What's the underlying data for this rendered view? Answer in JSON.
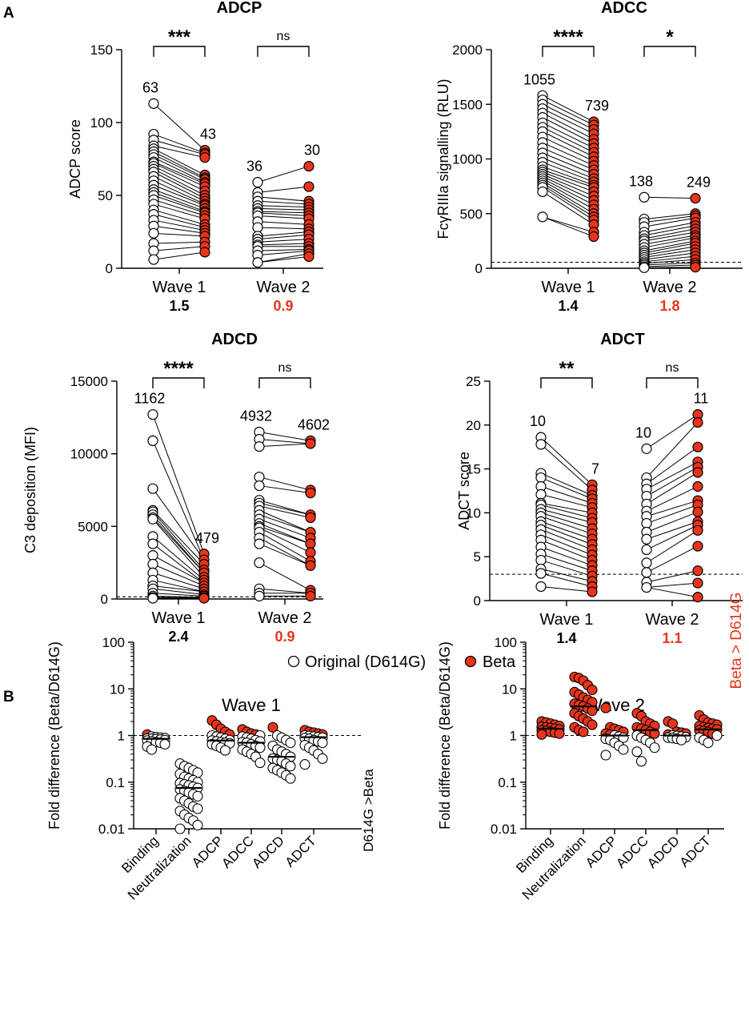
{
  "figure": {
    "panel_labels": [
      "A",
      "B"
    ],
    "legend": {
      "original": {
        "label": "Original (D614G)",
        "fill": "#ffffff"
      },
      "beta": {
        "label": "Beta",
        "fill": "#e8341c"
      }
    },
    "colors": {
      "beta": "#e8341c",
      "original": "#ffffff",
      "stroke": "#000000",
      "highlight_text": "#e8341c"
    }
  },
  "chart_data": [
    {
      "type": "scatter",
      "panel": "A",
      "title": "ADCP",
      "ylabel": "ADCP score",
      "ylim": [
        0,
        150
      ],
      "yticks": [
        0,
        50,
        100,
        150
      ],
      "categories": [
        "Wave 1",
        "Wave 2"
      ],
      "fold_labels": [
        "1.5",
        "0.9"
      ],
      "fold_colors": [
        "#000000",
        "#e8341c"
      ],
      "significance": [
        "***",
        "ns"
      ],
      "median_labels": [
        [
          "63",
          "43"
        ],
        [
          "36",
          "30"
        ]
      ],
      "cutoff": null,
      "series": [
        {
          "name": "Original (D614G)",
          "values": [
            [
              113,
              92,
              88,
              84,
              82,
              80,
              78,
              76,
              73,
              72,
              70,
              68,
              66,
              63,
              60,
              57,
              54,
              52,
              50,
              47,
              44,
              40,
              37,
              33,
              29,
              24,
              17,
              12,
              6
            ],
            [
              59,
              52,
              49,
              46,
              43,
              41,
              39,
              38,
              36,
              32,
              28,
              22,
              20,
              18,
              16,
              15,
              12,
              9,
              4
            ]
          ]
        },
        {
          "name": "Beta",
          "values": [
            [
              81,
              79,
              78,
              76,
              64,
              62,
              61,
              59,
              58,
              56,
              53,
              50,
              48,
              46,
              44,
              43,
              41,
              39,
              38,
              36,
              34,
              30,
              28,
              26,
              24,
              22,
              18,
              15,
              11
            ],
            [
              70,
              56,
              46,
              44,
              42,
              40,
              38,
              36,
              34,
              30,
              27,
              25,
              23,
              20,
              17,
              15,
              13,
              12,
              10,
              8
            ]
          ]
        }
      ]
    },
    {
      "type": "scatter",
      "panel": "A",
      "title": "ADCC",
      "ylabel": "FcγRIIIa signalling (RLU)",
      "ylim": [
        0,
        2000
      ],
      "yticks": [
        0,
        500,
        1000,
        1500,
        2000
      ],
      "categories": [
        "Wave 1",
        "Wave 2"
      ],
      "fold_labels": [
        "1.4",
        "1.8"
      ],
      "fold_colors": [
        "#000000",
        "#e8341c"
      ],
      "significance": [
        "****",
        "*"
      ],
      "median_labels": [
        [
          "1055",
          "739"
        ],
        [
          "138",
          "249"
        ]
      ],
      "cutoff": 55,
      "series": [
        {
          "name": "Original (D614G)",
          "values": [
            [
              1580,
              1540,
              1500,
              1460,
              1420,
              1380,
              1330,
              1290,
              1250,
              1200,
              1150,
              1100,
              1055,
              1010,
              970,
              930,
              900,
              880,
              860,
              840,
              820,
              800,
              780,
              760,
              740,
              700,
              470
            ],
            [
              650,
              450,
              420,
              380,
              330,
              300,
              270,
              250,
              220,
              190,
              160,
              140,
              120,
              100,
              80,
              60,
              45,
              30,
              15,
              5
            ]
          ]
        },
        {
          "name": "Beta",
          "values": [
            [
              1340,
              1310,
              1270,
              1230,
              1180,
              1140,
              1100,
              1060,
              1020,
              980,
              940,
              900,
              860,
              820,
              790,
              760,
              739,
              700,
              660,
              620,
              580,
              540,
              500,
              470,
              440,
              400,
              330,
              290
            ],
            [
              640,
              500,
              480,
              460,
              420,
              390,
              360,
              330,
              300,
              280,
              250,
              230,
              200,
              170,
              140,
              110,
              80,
              50,
              30,
              10
            ]
          ]
        }
      ]
    },
    {
      "type": "scatter",
      "panel": "A",
      "title": "ADCD",
      "ylabel": "C3 deposition (MFI)",
      "ylim": [
        0,
        15000
      ],
      "yticks": [
        0,
        5000,
        10000,
        15000
      ],
      "categories": [
        "Wave 1",
        "Wave 2"
      ],
      "fold_labels": [
        "2.4",
        "0.9"
      ],
      "fold_colors": [
        "#000000",
        "#e8341c"
      ],
      "significance": [
        "****",
        "ns"
      ],
      "median_labels": [
        [
          "1162",
          "479"
        ],
        [
          "4932",
          "4602"
        ]
      ],
      "cutoff": 150,
      "series": [
        {
          "name": "Original (D614G)",
          "values": [
            [
              12700,
              10900,
              7600,
              6100,
              6000,
              5800,
              5600,
              5500,
              4300,
              3800,
              3000,
              2400,
              1800,
              1300,
              900,
              700,
              400,
              200,
              100,
              50
            ],
            [
              11500,
              11000,
              10500,
              8400,
              7800,
              6800,
              6600,
              6400,
              6100,
              5800,
              5500,
              5200,
              5000,
              4900,
              4600,
              4200,
              3800,
              2500,
              700,
              400,
              200
            ]
          ]
        },
        {
          "name": "Beta",
          "values": [
            [
              3100,
              2700,
              2400,
              2000,
              1800,
              1500,
              1300,
              1100,
              900,
              700,
              500,
              300,
              200,
              100,
              50
            ],
            [
              10900,
              10700,
              7500,
              7300,
              5800,
              5600,
              4600,
              4200,
              3800,
              3200,
              2600,
              2300,
              600,
              400,
              200
            ]
          ]
        }
      ]
    },
    {
      "type": "scatter",
      "panel": "A",
      "title": "ADCT",
      "ylabel": "ADCT score",
      "ylim": [
        0,
        25
      ],
      "yticks": [
        0,
        5,
        10,
        15,
        20,
        25
      ],
      "categories": [
        "Wave 1",
        "Wave 2"
      ],
      "fold_labels": [
        "1.4",
        "1.1"
      ],
      "fold_colors": [
        "#000000",
        "#e8341c"
      ],
      "significance": [
        "**",
        "ns"
      ],
      "median_labels": [
        [
          "10",
          "7"
        ],
        [
          "10",
          "11"
        ]
      ],
      "cutoff": 3,
      "series": [
        {
          "name": "Original (D614G)",
          "values": [
            [
              18.6,
              17.8,
              14.5,
              14.0,
              13.0,
              12.1,
              11.1,
              10.9,
              10.4,
              10.0,
              9.6,
              9.0,
              8.6,
              8.1,
              7.5,
              6.9,
              6.1,
              5.3,
              4.6,
              3.6,
              3.1,
              1.6
            ],
            [
              17.3,
              14.0,
              13.3,
              12.7,
              11.9,
              11.0,
              10.2,
              9.6,
              8.8,
              7.8,
              7.0,
              5.8,
              4.3,
              3.2,
              2.1,
              1.5
            ]
          ]
        },
        {
          "name": "Beta",
          "values": [
            [
              13.2,
              12.6,
              12.0,
              11.6,
              11.1,
              10.6,
              10.0,
              9.4,
              8.9,
              8.2,
              7.6,
              7.0,
              6.4,
              5.8,
              5.2,
              4.6,
              4.0,
              3.4,
              2.8,
              2.2,
              1.6,
              1.0
            ],
            [
              21.2,
              20.3,
              17.5,
              15.8,
              15.2,
              14.6,
              13.0,
              11.4,
              10.9,
              10.1,
              9.0,
              8.6,
              8.0,
              6.2,
              3.4,
              2.0,
              0.4
            ]
          ]
        }
      ]
    },
    {
      "type": "scatter",
      "panel": "B",
      "title": "Wave 1",
      "ylabel": "Fold difference (Beta/D614G)",
      "yscale": "log",
      "ylim": [
        0.01,
        100
      ],
      "yticks": [
        0.01,
        0.1,
        1,
        10,
        100
      ],
      "ytick_labels": [
        "0.01",
        "0.1",
        "1",
        "10",
        "100"
      ],
      "categories": [
        "Binding",
        "Neutralization",
        "ADCP",
        "ADCC",
        "ADCD",
        "ADCT"
      ],
      "reference_line": 1,
      "side_annotation": "D614G >Beta",
      "medians": [
        0.85,
        0.075,
        0.78,
        0.7,
        0.35,
        0.92
      ],
      "values": [
        [
          1.05,
          0.95,
          0.92,
          0.9,
          0.88,
          0.86,
          0.85,
          0.84,
          0.82,
          0.8,
          0.78,
          0.75,
          0.72,
          0.7,
          0.65,
          0.58,
          0.5
        ],
        [
          0.25,
          0.22,
          0.2,
          0.18,
          0.16,
          0.15,
          0.13,
          0.12,
          0.11,
          0.1,
          0.095,
          0.09,
          0.085,
          0.08,
          0.075,
          0.07,
          0.065,
          0.06,
          0.055,
          0.05,
          0.045,
          0.04,
          0.035,
          0.03,
          0.027,
          0.024,
          0.02,
          0.017,
          0.015,
          0.012,
          0.01
        ],
        [
          2.1,
          1.7,
          1.4,
          1.2,
          1.05,
          1.0,
          0.95,
          0.9,
          0.85,
          0.8,
          0.78,
          0.75,
          0.72,
          0.7,
          0.68,
          0.65,
          0.6,
          0.55,
          0.48
        ],
        [
          1.35,
          1.2,
          1.1,
          1.05,
          1.0,
          0.95,
          0.9,
          0.85,
          0.8,
          0.75,
          0.72,
          0.7,
          0.65,
          0.6,
          0.55,
          0.5,
          0.45,
          0.4,
          0.35,
          0.26
        ],
        [
          1.5,
          1.0,
          0.9,
          0.8,
          0.7,
          0.6,
          0.5,
          0.45,
          0.4,
          0.35,
          0.32,
          0.3,
          0.28,
          0.25,
          0.22,
          0.2,
          0.18,
          0.16,
          0.14,
          0.12
        ],
        [
          1.3,
          1.2,
          1.15,
          1.1,
          1.05,
          1.0,
          0.98,
          0.95,
          0.92,
          0.9,
          0.88,
          0.85,
          0.8,
          0.75,
          0.7,
          0.62,
          0.55,
          0.48,
          0.4,
          0.32,
          0.24
        ]
      ]
    },
    {
      "type": "scatter",
      "panel": "B",
      "title": "Wave 2",
      "ylabel": "Fold difference (Beta/D614G)",
      "yscale": "log",
      "ylim": [
        0.01,
        100
      ],
      "yticks": [
        0.01,
        0.1,
        1,
        10,
        100
      ],
      "ytick_labels": [
        "0.01",
        "0.1",
        "1",
        "10",
        "100"
      ],
      "categories": [
        "Binding",
        "Neutralization",
        "ADCP",
        "ADCC",
        "ADCD",
        "ADCT"
      ],
      "reference_line": 1,
      "side_annotation": "Beta > D614G",
      "medians": [
        1.4,
        4.2,
        1.0,
        1.3,
        1.0,
        1.35
      ],
      "values": [
        [
          2.0,
          1.9,
          1.8,
          1.7,
          1.6,
          1.55,
          1.5,
          1.45,
          1.4,
          1.35,
          1.3,
          1.25,
          1.2,
          1.15,
          1.1,
          1.05
        ],
        [
          18,
          17,
          15,
          12,
          9.5,
          8.5,
          7.5,
          6.5,
          5.8,
          5.2,
          4.8,
          4.5,
          4.2,
          3.8,
          3.4,
          3.0,
          2.6,
          2.3,
          2.0,
          1.7,
          1.5,
          1.3,
          1.2
        ],
        [
          3.9,
          1.5,
          1.4,
          1.3,
          1.2,
          1.1,
          1.05,
          1.0,
          0.95,
          0.9,
          0.85,
          0.8,
          0.7,
          0.6,
          0.5,
          0.38
        ],
        [
          3.0,
          2.6,
          2.0,
          1.8,
          1.6,
          1.5,
          1.4,
          1.3,
          1.2,
          1.1,
          1.0,
          0.9,
          0.8,
          0.7,
          0.55,
          0.45,
          0.28
        ],
        [
          2.0,
          1.8,
          1.2,
          1.15,
          1.1,
          1.05,
          1.0,
          0.98,
          0.95,
          0.92,
          0.9,
          0.88,
          0.85,
          0.8
        ],
        [
          2.7,
          2.2,
          1.9,
          1.8,
          1.7,
          1.6,
          1.5,
          1.45,
          1.4,
          1.35,
          1.3,
          1.25,
          1.2,
          1.1,
          1.0,
          0.9,
          0.8,
          0.7
        ]
      ]
    }
  ]
}
